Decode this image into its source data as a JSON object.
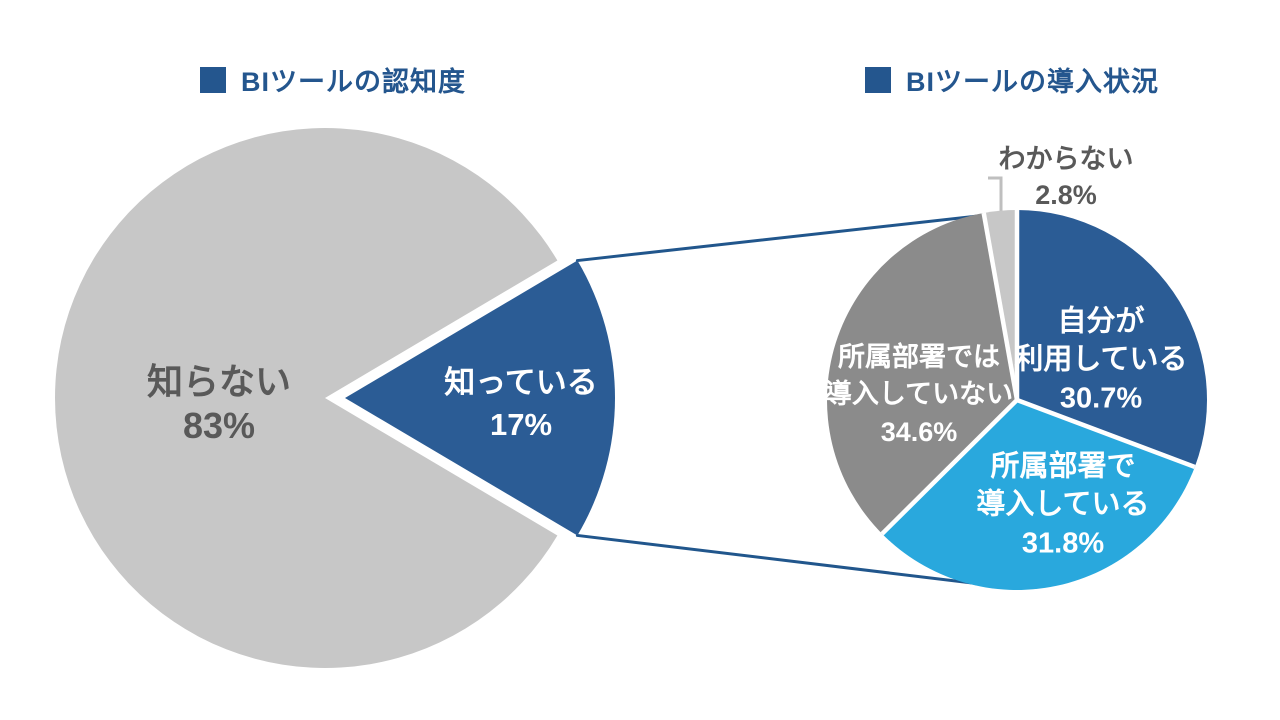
{
  "page": {
    "background": "#ffffff"
  },
  "accent_color": "#2b5c95",
  "connector_color": "#21568c",
  "leader_color": "#bfbfbf",
  "separator_color": "#ffffff",
  "chart_data": [
    {
      "type": "pie",
      "title": "BIツールの認知度",
      "legend": "none",
      "labels_on_slices": true,
      "slices": [
        {
          "label": "知らない",
          "value": 83,
          "display": "83%",
          "color": "#c7c7c7",
          "text_color": "#595959",
          "exploded": false
        },
        {
          "label": "知っている",
          "value": 17,
          "display": "17%",
          "color": "#2b5c95",
          "text_color": "#ffffff",
          "exploded": true
        }
      ]
    },
    {
      "type": "pie",
      "title": "BIツールの導入状況",
      "legend": "none",
      "start_angle": "12-oclock-clockwise",
      "labels_on_slices": true,
      "slices": [
        {
          "label": "自分が利用している",
          "lines": [
            "自分が",
            "利用している"
          ],
          "value": 30.7,
          "display": "30.7%",
          "color": "#2b5c95",
          "text_color": "#ffffff"
        },
        {
          "label": "所属部署で導入している",
          "lines": [
            "所属部署で",
            "導入している"
          ],
          "value": 31.8,
          "display": "31.8%",
          "color": "#29a8dd",
          "text_color": "#ffffff"
        },
        {
          "label": "所属部署では導入していない",
          "lines": [
            "所属部署では",
            "導入していない"
          ],
          "value": 34.6,
          "display": "34.6%",
          "color": "#8b8b8b",
          "text_color": "#ffffff"
        },
        {
          "label": "わからない",
          "lines": [
            "わからない"
          ],
          "value": 2.8,
          "display": "2.8%",
          "color": "#c7c7c7",
          "text_color": "#595959",
          "label_outside": true
        }
      ]
    }
  ]
}
